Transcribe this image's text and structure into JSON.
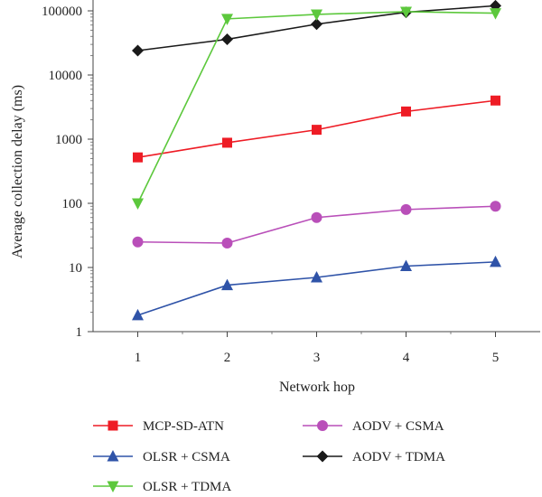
{
  "chart_data": {
    "type": "line",
    "title": "",
    "xlabel": "Network hop",
    "ylabel": "Average collection delay (ms)",
    "yscale": "log",
    "ylim": [
      1,
      100000
    ],
    "x": [
      1,
      2,
      3,
      4,
      5
    ],
    "xticks": [
      "1",
      "2",
      "3",
      "4",
      "5"
    ],
    "yticks": [
      "1",
      "10",
      "100",
      "1000",
      "10000",
      "100000"
    ],
    "grid": false,
    "legend_position": "bottom",
    "series": [
      {
        "name": "MCP-SD-ATN",
        "color": "#ee1c25",
        "marker": "square",
        "values": [
          520,
          880,
          1400,
          2700,
          4000
        ]
      },
      {
        "name": "AODV + CSMA",
        "color": "#b94fb9",
        "marker": "circle",
        "values": [
          25,
          24,
          60,
          80,
          90
        ]
      },
      {
        "name": "OLSR + CSMA",
        "color": "#2f53a8",
        "marker": "triangle-up",
        "values": [
          1.8,
          5.3,
          7,
          10.5,
          12.2
        ]
      },
      {
        "name": "AODV + TDMA",
        "color": "#1a1a1a",
        "marker": "diamond",
        "values": [
          24000,
          36000,
          62000,
          95000,
          120000
        ]
      },
      {
        "name": "OLSR + TDMA",
        "color": "#5cc83c",
        "marker": "triangle-down",
        "values": [
          100,
          75000,
          88000,
          97000,
          92000
        ]
      }
    ]
  }
}
